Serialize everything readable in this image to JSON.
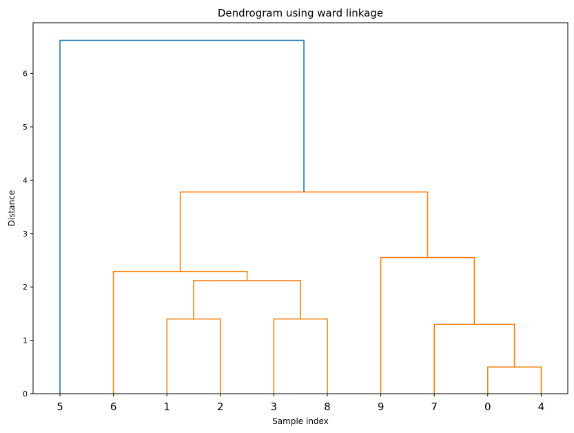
{
  "chart_data": {
    "type": "dendrogram",
    "title": "Dendrogram using ward linkage",
    "xlabel": "Sample index",
    "ylabel": "Distance",
    "ylim": [
      0,
      6.95
    ],
    "yticks": [
      0,
      1,
      2,
      3,
      4,
      5,
      6
    ],
    "leaf_order": [
      "5",
      "6",
      "1",
      "2",
      "3",
      "8",
      "9",
      "7",
      "0",
      "4"
    ],
    "colors": {
      "above_threshold": "#1f77b4",
      "cluster": "#ff7f0e"
    },
    "links": [
      {
        "left": [
          8,
          0
        ],
        "right": [
          9,
          0
        ],
        "height": 0.5,
        "color": "cluster"
      },
      {
        "left": [
          7,
          0
        ],
        "right": [
          8.5,
          0.5
        ],
        "height": 1.3,
        "color": "cluster"
      },
      {
        "left": [
          6,
          0
        ],
        "right": [
          7.75,
          1.3
        ],
        "height": 2.55,
        "color": "cluster"
      },
      {
        "left": [
          2,
          0
        ],
        "right": [
          3,
          0
        ],
        "height": 1.4,
        "color": "cluster"
      },
      {
        "left": [
          4,
          0
        ],
        "right": [
          5,
          0
        ],
        "height": 1.4,
        "color": "cluster"
      },
      {
        "left": [
          2.5,
          1.4
        ],
        "right": [
          4.5,
          1.4
        ],
        "height": 2.12,
        "color": "cluster"
      },
      {
        "left": [
          1,
          0
        ],
        "right": [
          3.5,
          2.12
        ],
        "height": 2.29,
        "color": "cluster"
      },
      {
        "left": [
          2.25,
          2.29
        ],
        "right": [
          6.875,
          2.55
        ],
        "height": 3.78,
        "color": "cluster"
      },
      {
        "left": [
          0,
          0
        ],
        "right": [
          4.5625,
          3.78
        ],
        "height": 6.62,
        "color": "above_threshold"
      }
    ]
  }
}
